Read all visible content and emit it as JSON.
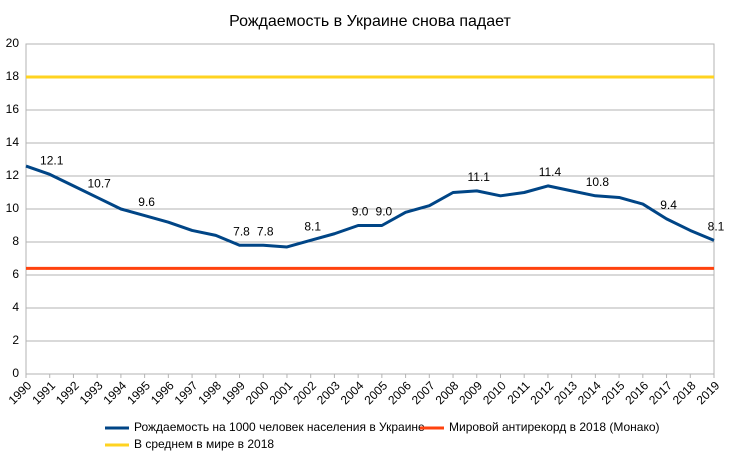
{
  "chart_data": {
    "type": "line",
    "title": "Рождаемость в Украине снова падает",
    "categories": [
      "1990",
      "1991",
      "1992",
      "1993",
      "1994",
      "1995",
      "1996",
      "1997",
      "1998",
      "1999",
      "2000",
      "2001",
      "2002",
      "2003",
      "2004",
      "2005",
      "2006",
      "2007",
      "2008",
      "2009",
      "2010",
      "2011",
      "2012",
      "2013",
      "2014",
      "2015",
      "2016",
      "2017",
      "2018",
      "2019"
    ],
    "series": [
      {
        "name": "Рождаемость на 1000 человек населения в Украине",
        "color": "#004586",
        "values": [
          12.6,
          12.1,
          11.4,
          10.7,
          10.0,
          9.6,
          9.2,
          8.7,
          8.4,
          7.8,
          7.8,
          7.7,
          8.1,
          8.5,
          9.0,
          9.0,
          9.8,
          10.2,
          11.0,
          11.1,
          10.8,
          11.0,
          11.4,
          11.1,
          10.8,
          10.7,
          10.3,
          9.4,
          8.7,
          8.1
        ],
        "value_labels": [
          null,
          "12.1",
          null,
          "10.7",
          null,
          "9.6",
          null,
          null,
          null,
          "7.8",
          "7.8",
          null,
          "8.1",
          null,
          "9.0",
          "9.0",
          null,
          null,
          null,
          "11.1",
          null,
          null,
          "11.4",
          null,
          "10.8",
          null,
          null,
          "9.4",
          null,
          "8.1"
        ]
      },
      {
        "name": "Мировой антирекорд в 2018 (Монако)",
        "color": "#ff420e",
        "values": [
          6.4,
          6.4,
          6.4,
          6.4,
          6.4,
          6.4,
          6.4,
          6.4,
          6.4,
          6.4,
          6.4,
          6.4,
          6.4,
          6.4,
          6.4,
          6.4,
          6.4,
          6.4,
          6.4,
          6.4,
          6.4,
          6.4,
          6.4,
          6.4,
          6.4,
          6.4,
          6.4,
          6.4,
          6.4,
          6.4
        ]
      },
      {
        "name": "В среднем в мире в 2018",
        "color": "#ffd320",
        "values": [
          18,
          18,
          18,
          18,
          18,
          18,
          18,
          18,
          18,
          18,
          18,
          18,
          18,
          18,
          18,
          18,
          18,
          18,
          18,
          18,
          18,
          18,
          18,
          18,
          18,
          18,
          18,
          18,
          18,
          18
        ]
      }
    ],
    "ylim": [
      0,
      20
    ],
    "yticks": [
      0,
      2,
      4,
      6,
      8,
      10,
      12,
      14,
      16,
      18,
      20
    ],
    "grid": true
  }
}
